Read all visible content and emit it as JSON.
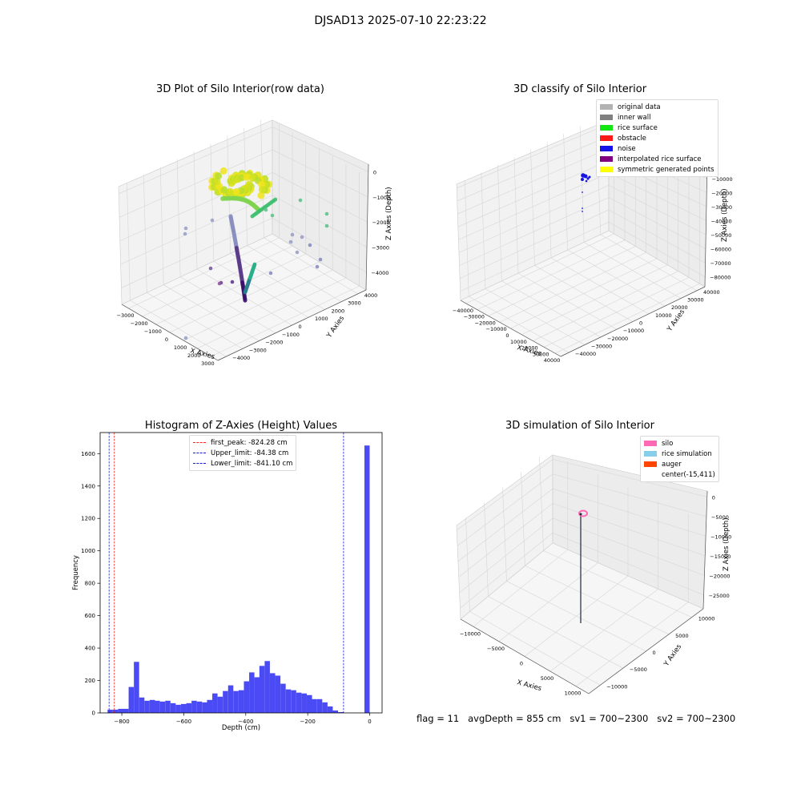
{
  "suptitle": "DJSAD13 2025-07-10 22:23:22",
  "colors": {
    "hist_bar": "#4b4bf5",
    "first_peak": "#ff2020",
    "limit": "#1a1ad0",
    "grid": "#d6d6d6",
    "pane": "#f2f2f2"
  },
  "panel_raw": {
    "title": "3D Plot of Silo Interior(row data)",
    "xlabel": "X Axies",
    "ylabel": "Y Axies",
    "zlabel": "Z Axies (Depth)",
    "xticks": [
      "−3000",
      "−2000",
      "−1000",
      "0",
      "1000",
      "2000",
      "3000"
    ],
    "yticks": [
      "4000",
      "3000",
      "2000",
      "1000",
      "0",
      "−1000",
      "−2000",
      "−3000",
      "−4000"
    ],
    "zticks": [
      "0",
      "−1000",
      "−2000",
      "−3000",
      "−4000"
    ]
  },
  "panel_classify": {
    "title": "3D classify of Silo Interior",
    "xlabel": "X Axies",
    "ylabel": "Y Axies",
    "zlabel": "Z Axies (Depth)",
    "xticks": [
      "−40000",
      "−30000",
      "−20000",
      "−10000",
      "0",
      "10000",
      "20000",
      "30000",
      "40000"
    ],
    "yticks": [
      "40000",
      "30000",
      "20000",
      "10000",
      "0",
      "−10000",
      "−20000",
      "−30000",
      "−40000"
    ],
    "zticks": [
      "0",
      "−10000",
      "−20000",
      "−30000",
      "−40000",
      "−50000",
      "−60000",
      "−70000",
      "−80000"
    ],
    "legend": [
      {
        "label": "original data",
        "color": "#b3b3b3"
      },
      {
        "label": "inner wall",
        "color": "#808080"
      },
      {
        "label": "rice surface",
        "color": "#14e614"
      },
      {
        "label": "obstacle",
        "color": "#ff1a1a"
      },
      {
        "label": "noise",
        "color": "#1414e6"
      },
      {
        "label": "interpolated rice surface",
        "color": "#800080"
      },
      {
        "label": "symmetric generated points",
        "color": "#ffff00"
      }
    ]
  },
  "panel_sim": {
    "title": "3D simulation of Silo Interior",
    "xlabel": "X Axies",
    "ylabel": "Y Axies",
    "zlabel": "Z Axies (Depth)",
    "xticks": [
      "−10000",
      "−5000",
      "0",
      "5000",
      "10000"
    ],
    "yticks": [
      "10000",
      "5000",
      "0",
      "−5000",
      "−10000"
    ],
    "zticks": [
      "0",
      "−5000",
      "−10000",
      "−15000",
      "−20000",
      "−25000"
    ],
    "legend": [
      {
        "label": "silo",
        "color": "#ff69b4"
      },
      {
        "label": "rice simulation",
        "color": "#87ceeb"
      },
      {
        "label": "auger",
        "color": "#ff4500"
      },
      {
        "label": "center(-15,411)",
        "color": "#ffffff"
      }
    ]
  },
  "footer": "flag = 11   avgDepth = 855 cm   sv1 = 700~2300   sv2 = 700~2300",
  "chart_data": {
    "type": "bar",
    "title": "Histogram of Z-Axies (Height) Values",
    "xlabel": "Depth (cm)",
    "ylabel": "Frequency",
    "xlim": [
      -870,
      40
    ],
    "ylim": [
      0,
      1730
    ],
    "xticks": [
      -800,
      -600,
      -400,
      -200,
      0
    ],
    "yticks": [
      0,
      200,
      400,
      600,
      800,
      1000,
      1200,
      1400,
      1600
    ],
    "bin_width": 16.9,
    "bin_starts": [
      -846,
      -829,
      -812,
      -795,
      -778,
      -761,
      -744,
      -727,
      -710,
      -694,
      -677,
      -660,
      -643,
      -626,
      -609,
      -592,
      -575,
      -558,
      -541,
      -525,
      -508,
      -491,
      -474,
      -457,
      -440,
      -423,
      -406,
      -389,
      -372,
      -356,
      -339,
      -322,
      -305,
      -288,
      -271,
      -254,
      -237,
      -220,
      -203,
      -187,
      -170,
      -153,
      -136,
      -119,
      -102,
      -85,
      -68,
      -51,
      -34,
      -17
    ],
    "values": [
      20,
      20,
      25,
      25,
      160,
      315,
      95,
      75,
      80,
      75,
      70,
      75,
      60,
      50,
      55,
      60,
      75,
      70,
      65,
      80,
      120,
      100,
      135,
      170,
      135,
      140,
      195,
      250,
      220,
      290,
      320,
      245,
      230,
      180,
      145,
      140,
      125,
      120,
      110,
      85,
      85,
      65,
      40,
      15,
      5,
      0,
      0,
      0,
      0,
      1650
    ],
    "vlines": [
      {
        "label": "first_peak: -824.28 cm",
        "x": -824.28,
        "color": "#ff2020"
      },
      {
        "label": "Upper_limit: -84.38 cm",
        "x": -84.38,
        "color": "#1a1ad0"
      },
      {
        "label": "Lower_limit: -841.10 cm",
        "x": -841.1,
        "color": "#1a1ad0"
      }
    ],
    "grid": false,
    "legend_placement": "upper center"
  }
}
